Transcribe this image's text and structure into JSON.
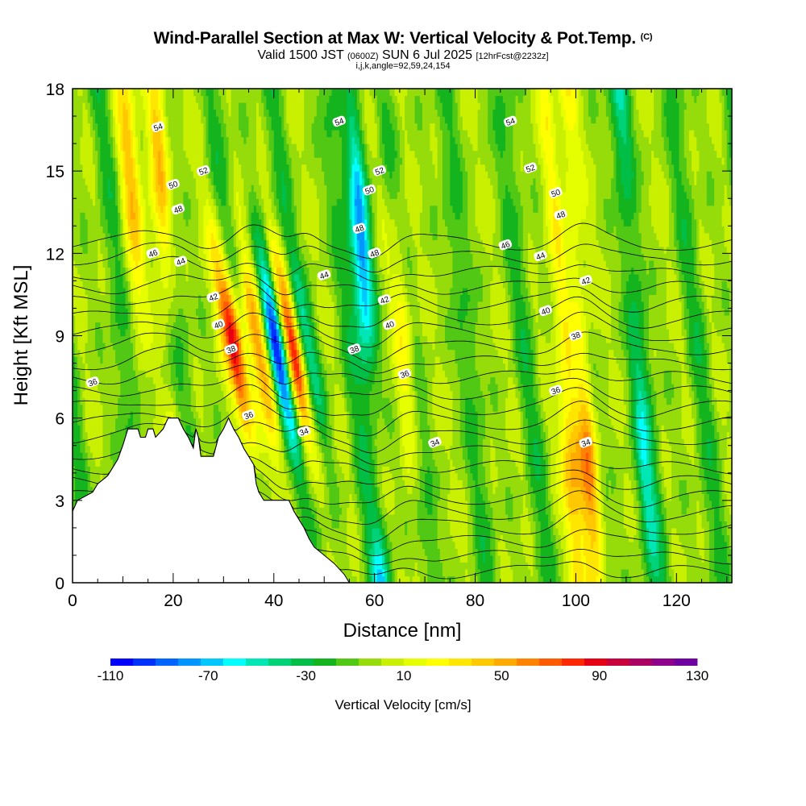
{
  "header": {
    "title": "Wind-Parallel Section at Max W: Vertical Velocity & Pot.Temp.",
    "copyright": "(C)",
    "valid_prefix": "Valid 1500 JST",
    "valid_utc": "(0600Z)",
    "valid_date": "SUN 6 Jul 2025",
    "forecast": "[12hrFcst@2232z]",
    "indices": "i,j,k,angle=92,59,24,154"
  },
  "chart_data": {
    "type": "heatmap",
    "xlabel": "Distance [nm]",
    "ylabel": "Height [Kft MSL]",
    "xlim": [
      0,
      131
    ],
    "ylim": [
      0,
      18
    ],
    "x_ticks": [
      0,
      20,
      40,
      60,
      80,
      100,
      120
    ],
    "y_ticks": [
      0,
      3,
      6,
      9,
      12,
      15,
      18
    ],
    "colorbar": {
      "title": "Vertical Velocity [cm/s]",
      "min": -110,
      "max": 130,
      "step": 10,
      "tick_labels": [
        -110,
        -70,
        -30,
        10,
        50,
        90,
        130
      ],
      "colors": [
        "#0000ff",
        "#0032ff",
        "#0064ff",
        "#0096ff",
        "#00c8ff",
        "#00ffff",
        "#00e6b4",
        "#00d278",
        "#00be46",
        "#14b41e",
        "#50c814",
        "#96dc0a",
        "#c8f000",
        "#e6ff00",
        "#ffff00",
        "#ffe600",
        "#ffc800",
        "#ffaa00",
        "#ff8200",
        "#ff5a00",
        "#ff2800",
        "#e60014",
        "#c8003c",
        "#aa0064",
        "#8c008c",
        "#6e00a0"
      ]
    },
    "terrain": [
      [
        0,
        2.6
      ],
      [
        1,
        3.0
      ],
      [
        4,
        3.3
      ],
      [
        5,
        3.6
      ],
      [
        7,
        3.9
      ],
      [
        8,
        4.2
      ],
      [
        9,
        4.5
      ],
      [
        10,
        5.0
      ],
      [
        11,
        5.6
      ],
      [
        13,
        5.6
      ],
      [
        13.5,
        5.3
      ],
      [
        14.5,
        5.3
      ],
      [
        15,
        5.6
      ],
      [
        16,
        5.6
      ],
      [
        16.5,
        5.3
      ],
      [
        18,
        5.6
      ],
      [
        19,
        6.0
      ],
      [
        21,
        6.0
      ],
      [
        22,
        5.6
      ],
      [
        23,
        5.3
      ],
      [
        24,
        4.9
      ],
      [
        24.5,
        5.6
      ],
      [
        25,
        5.3
      ],
      [
        25.5,
        4.6
      ],
      [
        28,
        4.6
      ],
      [
        29,
        5.3
      ],
      [
        30,
        5.6
      ],
      [
        31,
        6.0
      ],
      [
        32,
        5.6
      ],
      [
        33,
        5.3
      ],
      [
        34,
        4.9
      ],
      [
        35,
        4.6
      ],
      [
        36,
        4.3
      ],
      [
        36.5,
        3.6
      ],
      [
        37,
        3.3
      ],
      [
        38,
        3.0
      ],
      [
        43,
        3.0
      ],
      [
        44,
        2.6
      ],
      [
        45,
        2.3
      ],
      [
        46,
        2.0
      ],
      [
        47,
        1.6
      ],
      [
        48,
        1.3
      ],
      [
        50,
        1.0
      ],
      [
        52,
        0.7
      ],
      [
        54,
        0.3
      ],
      [
        55,
        0.0
      ]
    ],
    "velocity_bands": [
      {
        "center": 14.5,
        "value": 55
      },
      {
        "center": 20.5,
        "value": 75
      },
      {
        "center": 34.5,
        "value": 125
      },
      {
        "center": 39.5,
        "value": 65
      },
      {
        "center": 43.0,
        "value": -105
      },
      {
        "center": 46.0,
        "value": 125
      },
      {
        "center": 49.0,
        "value": -40
      },
      {
        "center": 59.5,
        "value": -75
      },
      {
        "center": 67.0,
        "value": 50
      },
      {
        "center": 98.5,
        "value": 60
      },
      {
        "center": 102.0,
        "value": 90
      },
      {
        "center": 113.0,
        "value": -30
      }
    ],
    "potential_temperature": {
      "contour_interval": 1,
      "labels": [
        {
          "text": "54",
          "x": 17,
          "y": 16.6
        },
        {
          "text": "54",
          "x": 53,
          "y": 16.8
        },
        {
          "text": "54",
          "x": 87,
          "y": 16.8
        },
        {
          "text": "52",
          "x": 26,
          "y": 15.0
        },
        {
          "text": "52",
          "x": 61,
          "y": 15.0
        },
        {
          "text": "52",
          "x": 91,
          "y": 15.1
        },
        {
          "text": "50",
          "x": 20,
          "y": 14.5
        },
        {
          "text": "50",
          "x": 59,
          "y": 14.3
        },
        {
          "text": "50",
          "x": 96,
          "y": 14.2
        },
        {
          "text": "48",
          "x": 21,
          "y": 13.6
        },
        {
          "text": "48",
          "x": 57,
          "y": 12.9
        },
        {
          "text": "48",
          "x": 97,
          "y": 13.4
        },
        {
          "text": "48",
          "x": 60,
          "y": 12.0
        },
        {
          "text": "46",
          "x": 16,
          "y": 12.0
        },
        {
          "text": "46",
          "x": 86,
          "y": 12.3
        },
        {
          "text": "44",
          "x": 21.5,
          "y": 11.7
        },
        {
          "text": "44",
          "x": 50,
          "y": 11.2
        },
        {
          "text": "44",
          "x": 93,
          "y": 11.9
        },
        {
          "text": "42",
          "x": 28,
          "y": 10.4
        },
        {
          "text": "42",
          "x": 62,
          "y": 10.3
        },
        {
          "text": "42",
          "x": 102,
          "y": 11.0
        },
        {
          "text": "40",
          "x": 29,
          "y": 9.4
        },
        {
          "text": "40",
          "x": 63,
          "y": 9.4
        },
        {
          "text": "40",
          "x": 94,
          "y": 9.9
        },
        {
          "text": "38",
          "x": 31.5,
          "y": 8.5
        },
        {
          "text": "38",
          "x": 56,
          "y": 8.5
        },
        {
          "text": "38",
          "x": 100,
          "y": 9.0
        },
        {
          "text": "36",
          "x": 4,
          "y": 7.3
        },
        {
          "text": "36",
          "x": 66,
          "y": 7.6
        },
        {
          "text": "36",
          "x": 96,
          "y": 7.0
        },
        {
          "text": "36",
          "x": 35,
          "y": 6.1
        },
        {
          "text": "34",
          "x": 46,
          "y": 5.5
        },
        {
          "text": "34",
          "x": 72,
          "y": 5.1
        },
        {
          "text": "34",
          "x": 102,
          "y": 5.1
        }
      ]
    }
  }
}
